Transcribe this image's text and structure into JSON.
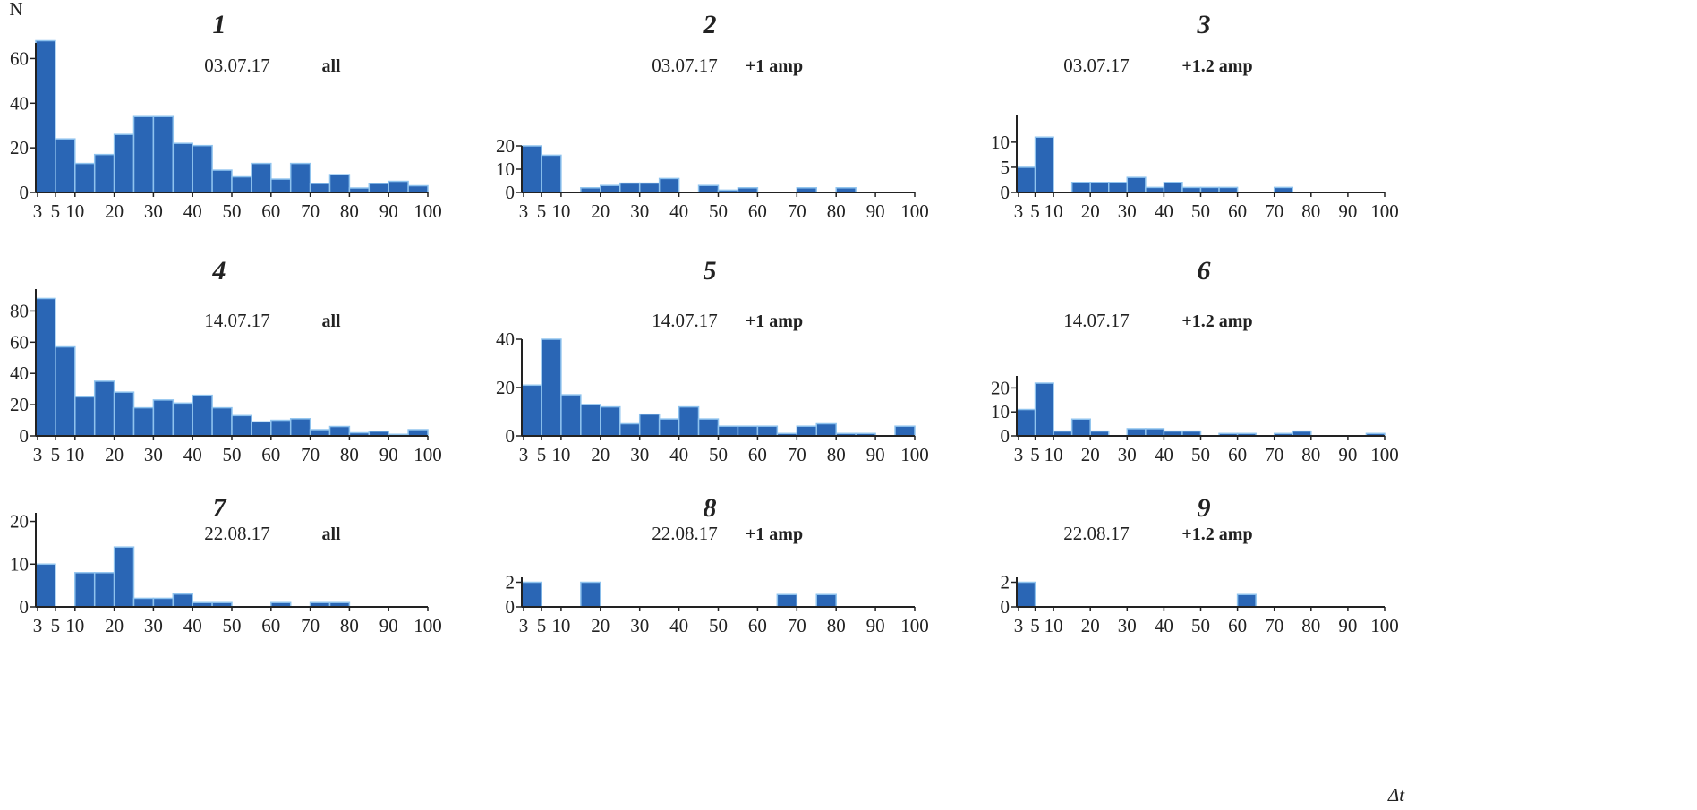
{
  "chart_data": [
    {
      "type": "bar",
      "title": "1",
      "date": "03.07.17",
      "label": "all",
      "ylabel": "N",
      "bin_width": 5,
      "xlim": [
        0,
        100
      ],
      "ylim": [
        0,
        67
      ],
      "yticks": [
        0,
        20,
        40,
        60
      ],
      "values": [
        68,
        24,
        13,
        17,
        26,
        34,
        34,
        22,
        21,
        10,
        7,
        13,
        6,
        13,
        4,
        8,
        2,
        4,
        5,
        3
      ]
    },
    {
      "type": "bar",
      "title": "2",
      "date": "03.07.17",
      "label": "+1 amp",
      "bin_width": 5,
      "xlim": [
        0,
        100
      ],
      "ylim": [
        0,
        20
      ],
      "yticks": [
        0,
        10,
        20
      ],
      "values": [
        20,
        16,
        0,
        2,
        3,
        4,
        4,
        6,
        0,
        3,
        1,
        2,
        0,
        0,
        2,
        0,
        2,
        0,
        0,
        0
      ]
    },
    {
      "type": "bar",
      "title": "3",
      "date": "03.07.17",
      "label": "+1.2 amp",
      "bin_width": 5,
      "xlim": [
        0,
        100
      ],
      "ylim": [
        0,
        15.5
      ],
      "yticks": [
        0,
        5,
        10
      ],
      "values": [
        5,
        11,
        0,
        2,
        2,
        2,
        3,
        1,
        2,
        1,
        1,
        1,
        0,
        0,
        1,
        0,
        0,
        0,
        0,
        0
      ]
    },
    {
      "type": "bar",
      "title": "4",
      "date": "14.07.17",
      "label": "all",
      "bin_width": 5,
      "xlim": [
        0,
        100
      ],
      "ylim": [
        0,
        94
      ],
      "yticks": [
        0,
        20,
        40,
        60,
        80
      ],
      "values": [
        88,
        57,
        25,
        35,
        28,
        18,
        23,
        21,
        26,
        18,
        13,
        9,
        10,
        11,
        4,
        6,
        2,
        3,
        1,
        4
      ]
    },
    {
      "type": "bar",
      "title": "5",
      "date": "14.07.17",
      "label": "+1 amp",
      "bin_width": 5,
      "xlim": [
        0,
        100
      ],
      "ylim": [
        0,
        40
      ],
      "yticks": [
        0,
        20,
        40
      ],
      "values": [
        21,
        40,
        17,
        13,
        12,
        5,
        9,
        7,
        12,
        7,
        4,
        4,
        4,
        1,
        4,
        5,
        1,
        1,
        0,
        4
      ]
    },
    {
      "type": "bar",
      "title": "6",
      "date": "14.07.17",
      "label": "+1.2 amp",
      "bin_width": 5,
      "xlim": [
        0,
        100
      ],
      "ylim": [
        0,
        25
      ],
      "yticks": [
        0,
        10,
        20
      ],
      "values": [
        11,
        22,
        2,
        7,
        2,
        0,
        3,
        3,
        2,
        2,
        0,
        1,
        1,
        0,
        1,
        2,
        0,
        0,
        0,
        1
      ]
    },
    {
      "type": "bar",
      "title": "7",
      "date": "22.08.17",
      "label": "all",
      "bin_width": 5,
      "xlim": [
        0,
        100
      ],
      "ylim": [
        0,
        22
      ],
      "yticks": [
        0,
        10,
        20
      ],
      "values": [
        10,
        0,
        8,
        8,
        14,
        2,
        2,
        3,
        1,
        1,
        0,
        0,
        1,
        0,
        1,
        1,
        0,
        0,
        0,
        0
      ]
    },
    {
      "type": "bar",
      "title": "8",
      "date": "22.08.17",
      "label": "+1 amp",
      "bin_width": 5,
      "xlim": [
        0,
        100
      ],
      "ylim": [
        0,
        2.4
      ],
      "yticks": [
        0,
        2
      ],
      "values": [
        2,
        0,
        0,
        2,
        0,
        0,
        0,
        0,
        0,
        0,
        0,
        0,
        0,
        1,
        0,
        1,
        0,
        0,
        0,
        0
      ]
    },
    {
      "type": "bar",
      "title": "9",
      "date": "22.08.17",
      "label": "+1.2 amp",
      "bin_width": 5,
      "xlim": [
        0,
        100
      ],
      "ylim": [
        0,
        2.4
      ],
      "yticks": [
        0,
        2
      ],
      "values": [
        2,
        0,
        0,
        0,
        0,
        0,
        0,
        0,
        0,
        0,
        0,
        0,
        1,
        0,
        0,
        0,
        0,
        0,
        0,
        0
      ]
    }
  ],
  "xticks": [
    3,
    5,
    10,
    20,
    30,
    40,
    50,
    60,
    70,
    80,
    90,
    100
  ],
  "xlabel": "Δt",
  "colors": {
    "bar": "#2a66b5",
    "edge": "#8fc3ee",
    "axis": "#222222"
  }
}
